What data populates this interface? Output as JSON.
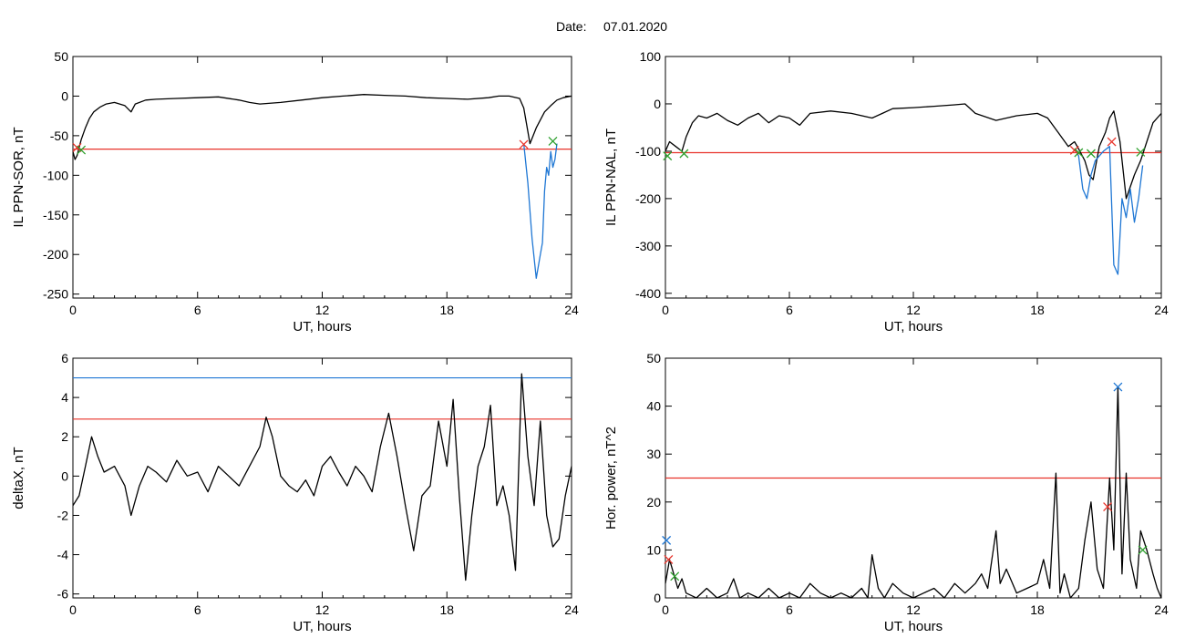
{
  "date_label": "Date:",
  "date_value": "07.01.2020",
  "chart_data": [
    {
      "type": "line",
      "id": "ppn-sor",
      "title": "",
      "xlabel": "UT, hours",
      "ylabel": "IL PPN-SOR, nT",
      "xlim": [
        0,
        24
      ],
      "ylim": [
        -255,
        50
      ],
      "xticks": [
        0,
        6,
        12,
        18,
        24
      ],
      "yticks": [
        50,
        0,
        -50,
        -100,
        -150,
        -200,
        -250
      ],
      "grid": false,
      "threshold": {
        "value": -67,
        "color": "#e8332a"
      },
      "series": [
        {
          "color": "#000000",
          "x": [
            0,
            0.1,
            0.2,
            0.3,
            0.4,
            0.6,
            0.8,
            1.0,
            1.3,
            1.6,
            2.0,
            2.5,
            2.8,
            3.0,
            3.5,
            4.0,
            5.0,
            6.0,
            7.0,
            8.0,
            8.5,
            9.0,
            10.0,
            11.0,
            12.0,
            13.0,
            14.0,
            15.0,
            16.0,
            17.0,
            18.0,
            19.0,
            20.0,
            20.5,
            21.0,
            21.5,
            21.7,
            22.0,
            22.3,
            22.7,
            23.0,
            23.3,
            23.6,
            24.0
          ],
          "y": [
            -70,
            -80,
            -75,
            -65,
            -55,
            -40,
            -28,
            -20,
            -14,
            -10,
            -8,
            -12,
            -20,
            -10,
            -5,
            -4,
            -3,
            -2,
            -1,
            -5,
            -8,
            -10,
            -8,
            -5,
            -2,
            0,
            2,
            1,
            0,
            -2,
            -3,
            -4,
            -2,
            0,
            0,
            -3,
            -15,
            -60,
            -40,
            -20,
            -12,
            -5,
            -2,
            0
          ]
        },
        {
          "color": "#1f77d4",
          "x": [
            21.7,
            21.9,
            22.1,
            22.3,
            22.5,
            22.6,
            22.7,
            22.8,
            22.9,
            23.0,
            23.1,
            23.2,
            23.3
          ],
          "y": [
            -60,
            -110,
            -180,
            -230,
            -200,
            -185,
            -120,
            -90,
            -100,
            -70,
            -90,
            -80,
            -60
          ]
        }
      ],
      "markers": [
        {
          "x": 0.2,
          "y": -65,
          "symbol": "x",
          "color": "#e8332a"
        },
        {
          "x": 0.4,
          "y": -68,
          "symbol": "x",
          "color": "#2ca02c"
        },
        {
          "x": 21.7,
          "y": -61,
          "symbol": "x",
          "color": "#e8332a"
        },
        {
          "x": 23.1,
          "y": -57,
          "symbol": "x",
          "color": "#2ca02c"
        }
      ]
    },
    {
      "type": "line",
      "id": "ppn-nal",
      "title": "",
      "xlabel": "UT, hours",
      "ylabel": "IL PPN-NAL, nT",
      "xlim": [
        0,
        24
      ],
      "ylim": [
        -410,
        100
      ],
      "xticks": [
        0,
        6,
        12,
        18,
        24
      ],
      "yticks": [
        100,
        0,
        -100,
        -200,
        -300,
        -400
      ],
      "grid": false,
      "threshold": {
        "value": -103,
        "color": "#e8332a"
      },
      "series": [
        {
          "color": "#000000",
          "x": [
            0,
            0.2,
            0.5,
            0.8,
            1.0,
            1.3,
            1.6,
            2.0,
            2.5,
            3.0,
            3.5,
            4.0,
            4.5,
            5.0,
            5.5,
            6.0,
            6.5,
            7.0,
            8.0,
            9.0,
            10.0,
            10.5,
            11.0,
            12.0,
            13.0,
            14.0,
            14.5,
            15.0,
            16.0,
            17.0,
            18.0,
            18.5,
            19.0,
            19.5,
            19.8,
            20.0,
            20.3,
            20.5,
            20.7,
            21.0,
            21.3,
            21.5,
            21.7,
            22.0,
            22.3,
            22.7,
            23.0,
            23.3,
            23.6,
            24.0
          ],
          "y": [
            -100,
            -80,
            -90,
            -100,
            -70,
            -40,
            -25,
            -30,
            -20,
            -35,
            -45,
            -30,
            -20,
            -40,
            -25,
            -30,
            -45,
            -20,
            -15,
            -20,
            -30,
            -20,
            -10,
            -8,
            -5,
            -2,
            0,
            -20,
            -35,
            -25,
            -20,
            -30,
            -60,
            -90,
            -80,
            -95,
            -120,
            -150,
            -160,
            -90,
            -60,
            -30,
            -15,
            -80,
            -200,
            -150,
            -120,
            -80,
            -40,
            -20
          ]
        },
        {
          "color": "#1f77d4",
          "x": [
            19.8,
            20.0,
            20.2,
            20.4,
            20.6,
            20.8,
            21.0,
            21.2,
            21.5,
            21.7,
            21.9,
            22.1,
            22.3,
            22.5,
            22.7,
            22.9,
            23.1
          ],
          "y": [
            -95,
            -110,
            -180,
            -200,
            -150,
            -120,
            -110,
            -100,
            -90,
            -340,
            -360,
            -200,
            -240,
            -180,
            -250,
            -200,
            -130
          ]
        }
      ],
      "markers": [
        {
          "x": 0.1,
          "y": -110,
          "symbol": "x",
          "color": "#2ca02c"
        },
        {
          "x": 0.9,
          "y": -105,
          "symbol": "x",
          "color": "#2ca02c"
        },
        {
          "x": 19.8,
          "y": -98,
          "symbol": "x",
          "color": "#e8332a"
        },
        {
          "x": 20.0,
          "y": -103,
          "symbol": "x",
          "color": "#2ca02c"
        },
        {
          "x": 20.6,
          "y": -105,
          "symbol": "x",
          "color": "#2ca02c"
        },
        {
          "x": 21.6,
          "y": -80,
          "symbol": "x",
          "color": "#e8332a"
        },
        {
          "x": 23.0,
          "y": -102,
          "symbol": "x",
          "color": "#2ca02c"
        }
      ]
    },
    {
      "type": "line",
      "id": "deltax",
      "title": "",
      "xlabel": "UT, hours",
      "ylabel": "deltaX, nT",
      "xlim": [
        0,
        24
      ],
      "ylim": [
        -6.2,
        6
      ],
      "xticks": [
        0,
        6,
        12,
        18,
        24
      ],
      "yticks": [
        6,
        4,
        2,
        0,
        -2,
        -4,
        -6
      ],
      "grid": false,
      "thresholds": [
        {
          "value": 5.0,
          "color": "#1f77d4"
        },
        {
          "value": 2.9,
          "color": "#e8332a"
        }
      ],
      "series": [
        {
          "color": "#000000",
          "x": [
            0,
            0.3,
            0.6,
            0.9,
            1.2,
            1.5,
            2.0,
            2.5,
            2.8,
            3.2,
            3.6,
            4.0,
            4.5,
            5.0,
            5.5,
            6.0,
            6.5,
            7.0,
            7.5,
            8.0,
            8.5,
            9.0,
            9.3,
            9.6,
            10.0,
            10.4,
            10.8,
            11.2,
            11.6,
            12.0,
            12.4,
            12.8,
            13.2,
            13.6,
            14.0,
            14.4,
            14.8,
            15.2,
            15.6,
            16.0,
            16.4,
            16.8,
            17.2,
            17.6,
            18.0,
            18.3,
            18.6,
            18.9,
            19.2,
            19.5,
            19.8,
            20.1,
            20.4,
            20.7,
            21.0,
            21.3,
            21.6,
            21.9,
            22.2,
            22.5,
            22.8,
            23.1,
            23.4,
            23.7,
            24.0
          ],
          "y": [
            -1.5,
            -1.0,
            0.5,
            2.0,
            1.0,
            0.2,
            0.5,
            -0.5,
            -2.0,
            -0.5,
            0.5,
            0.2,
            -0.3,
            0.8,
            0.0,
            0.2,
            -0.8,
            0.5,
            0.0,
            -0.5,
            0.5,
            1.5,
            3.0,
            2.0,
            0.0,
            -0.5,
            -0.8,
            -0.2,
            -1.0,
            0.5,
            1.0,
            0.2,
            -0.5,
            0.5,
            0.0,
            -0.8,
            1.5,
            3.2,
            1.0,
            -1.5,
            -3.8,
            -1.0,
            -0.5,
            2.8,
            0.5,
            3.9,
            -1.0,
            -5.3,
            -2.0,
            0.5,
            1.5,
            3.6,
            -1.5,
            -0.5,
            -2.0,
            -4.8,
            5.2,
            1.0,
            -1.5,
            2.8,
            -2.0,
            -3.6,
            -3.2,
            -1.0,
            0.5
          ]
        }
      ],
      "markers": []
    },
    {
      "type": "line",
      "id": "hor-power",
      "title": "",
      "xlabel": "UT, hours",
      "ylabel": "Hor. power, nT^2",
      "xlim": [
        0,
        24
      ],
      "ylim": [
        0,
        50
      ],
      "xticks": [
        0,
        6,
        12,
        18,
        24
      ],
      "yticks": [
        50,
        40,
        30,
        20,
        10,
        0
      ],
      "grid": false,
      "threshold": {
        "value": 25,
        "color": "#e8332a"
      },
      "series": [
        {
          "color": "#000000",
          "x": [
            0,
            0.2,
            0.4,
            0.6,
            0.8,
            1.0,
            1.5,
            2.0,
            2.5,
            3.0,
            3.3,
            3.6,
            4.0,
            4.5,
            5.0,
            5.5,
            6.0,
            6.5,
            7.0,
            7.5,
            8.0,
            8.5,
            9.0,
            9.5,
            9.8,
            10.0,
            10.3,
            10.6,
            11.0,
            11.5,
            12.0,
            12.5,
            13.0,
            13.5,
            14.0,
            14.5,
            15.0,
            15.3,
            15.6,
            16.0,
            16.2,
            16.5,
            17.0,
            17.5,
            18.0,
            18.3,
            18.6,
            18.9,
            19.1,
            19.3,
            19.6,
            20.0,
            20.3,
            20.6,
            20.9,
            21.2,
            21.5,
            21.7,
            21.9,
            22.1,
            22.3,
            22.5,
            22.8,
            23.0,
            23.3,
            23.6,
            23.8,
            24.0
          ],
          "y": [
            3,
            8,
            5,
            2,
            4,
            1,
            0,
            2,
            0,
            1,
            4,
            0,
            1,
            0,
            2,
            0,
            1,
            0,
            3,
            1,
            0,
            1,
            0,
            2,
            0,
            9,
            2,
            0,
            3,
            1,
            0,
            1,
            2,
            0,
            3,
            1,
            3,
            5,
            2,
            14,
            3,
            6,
            1,
            2,
            3,
            8,
            2,
            26,
            1,
            5,
            0,
            2,
            12,
            20,
            6,
            2,
            25,
            10,
            44,
            5,
            26,
            8,
            2,
            14,
            10,
            5,
            2,
            0
          ]
        }
      ],
      "markers": [
        {
          "x": 0.05,
          "y": 12,
          "symbol": "x",
          "color": "#1f77d4"
        },
        {
          "x": 0.15,
          "y": 8,
          "symbol": "x",
          "color": "#e8332a"
        },
        {
          "x": 0.45,
          "y": 4.5,
          "symbol": "x",
          "color": "#2ca02c"
        },
        {
          "x": 21.4,
          "y": 19,
          "symbol": "x",
          "color": "#e8332a"
        },
        {
          "x": 21.9,
          "y": 44,
          "symbol": "x",
          "color": "#1f77d4"
        },
        {
          "x": 23.1,
          "y": 10,
          "symbol": "x",
          "color": "#2ca02c"
        }
      ]
    }
  ]
}
